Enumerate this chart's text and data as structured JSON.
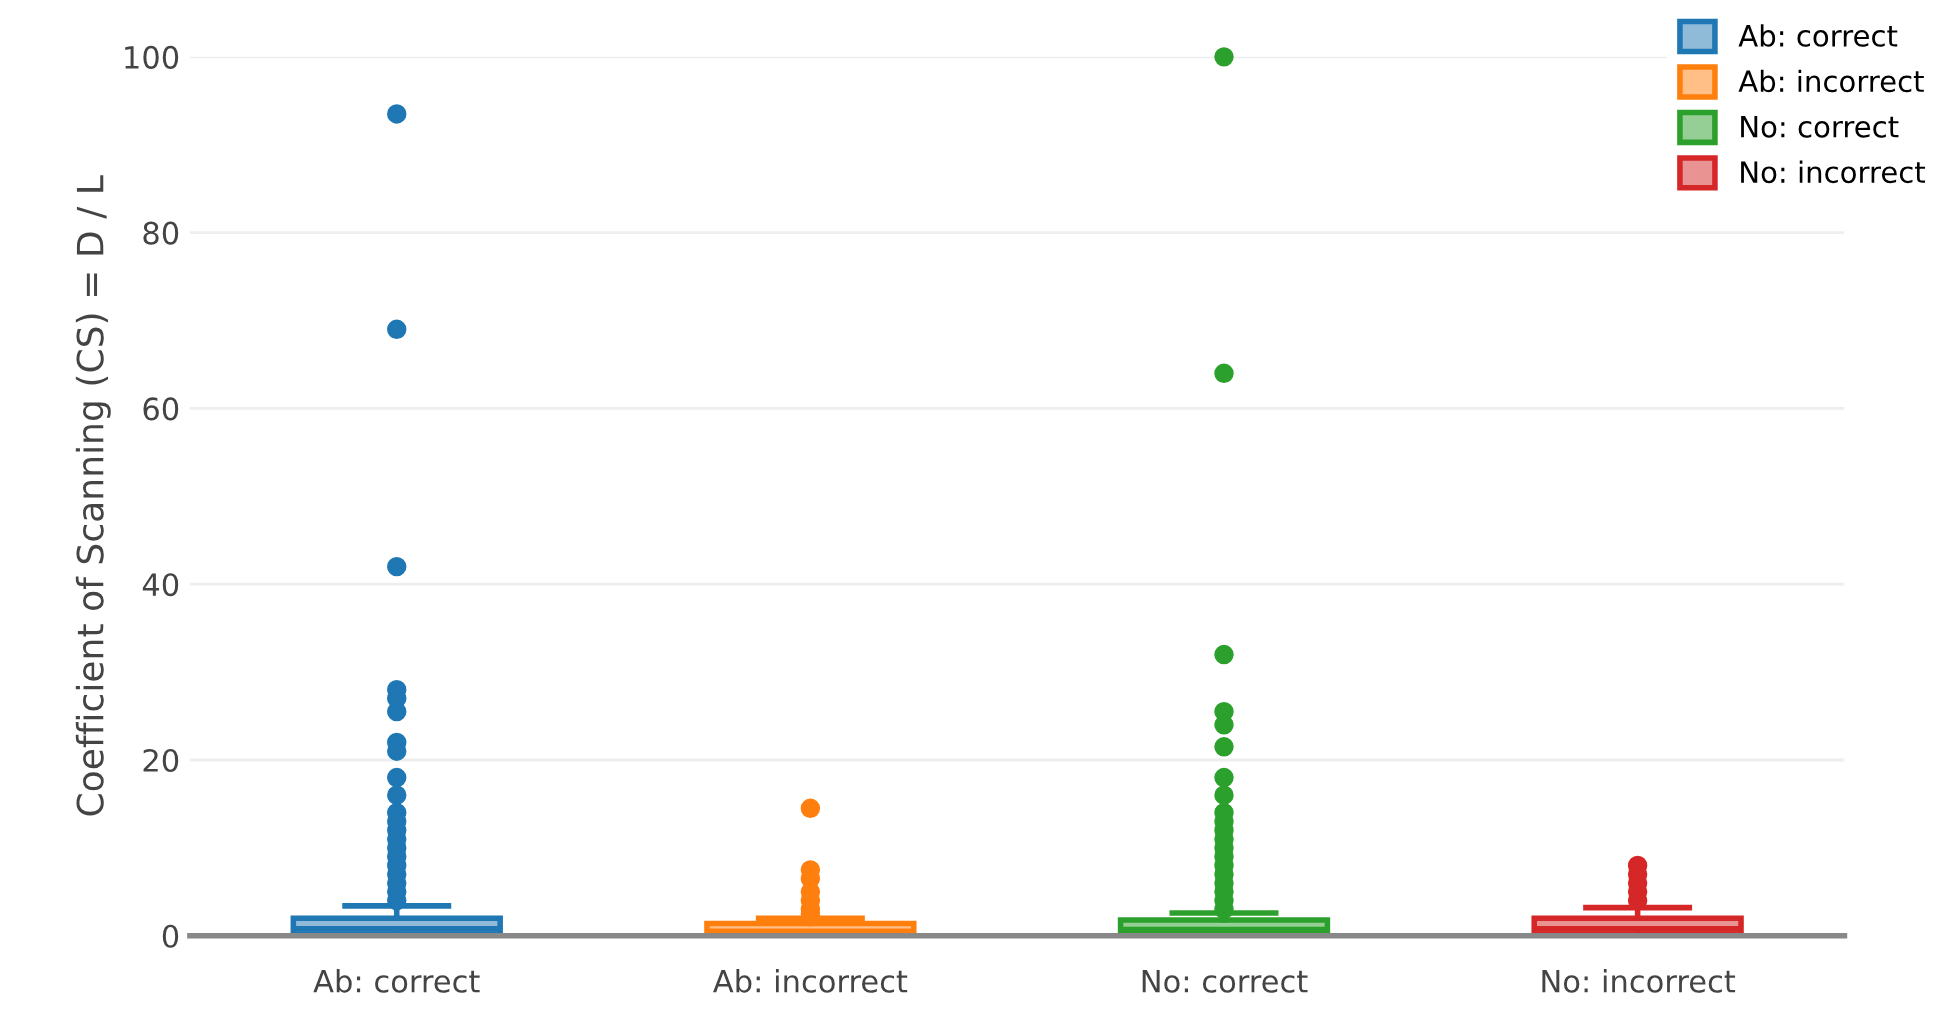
{
  "chart_data": {
    "type": "box",
    "ylabel": "Coefficient of Scanning (CS) = D / L",
    "categories": [
      "Ab: correct",
      "Ab: incorrect",
      "No: correct",
      "No: incorrect"
    ],
    "ylim": [
      0,
      100
    ],
    "yticks": [
      0,
      20,
      40,
      60,
      80,
      100
    ],
    "grid": "y",
    "legend": "top right",
    "marker": "circle",
    "series": [
      {
        "name": "Ab: correct",
        "color": "#1f77b4",
        "boxes": [
          {
            "low": 0,
            "q1": 0.2,
            "median": 0.8,
            "q3": 2,
            "high": 3.4,
            "outliers": [
              93.5,
              69,
              42,
              28,
              27,
              25.5,
              22,
              21,
              18,
              16,
              14,
              13,
              12,
              11,
              10,
              9,
              8,
              7,
              6,
              5,
              4
            ]
          },
          null,
          null,
          null
        ]
      },
      {
        "name": "Ab: incorrect",
        "color": "#ff7f0e",
        "boxes": [
          null,
          {
            "low": 0,
            "q1": 0.1,
            "median": 0.5,
            "q3": 1.4,
            "high": 2,
            "outliers": [
              14.5,
              7.5,
              6.5,
              5,
              4,
              3,
              2.5
            ]
          },
          null,
          null
        ]
      },
      {
        "name": "No: correct",
        "color": "#2ca02c",
        "boxes": [
          null,
          null,
          {
            "low": 0,
            "q1": 0.2,
            "median": 0.7,
            "q3": 1.8,
            "high": 2.6,
            "outliers": [
              100,
              64,
              32,
              25.5,
              24,
              21.5,
              18,
              16,
              14,
              13,
              12,
              11,
              10,
              9,
              8,
              7,
              6,
              5,
              4,
              3
            ]
          },
          null
        ]
      },
      {
        "name": "No: incorrect",
        "color": "#d62728",
        "boxes": [
          null,
          null,
          null,
          {
            "low": 0,
            "q1": 0.2,
            "median": 0.8,
            "q3": 2,
            "high": 3.2,
            "outliers": [
              8,
              7,
              6,
              5,
              4
            ]
          }
        ]
      }
    ]
  }
}
